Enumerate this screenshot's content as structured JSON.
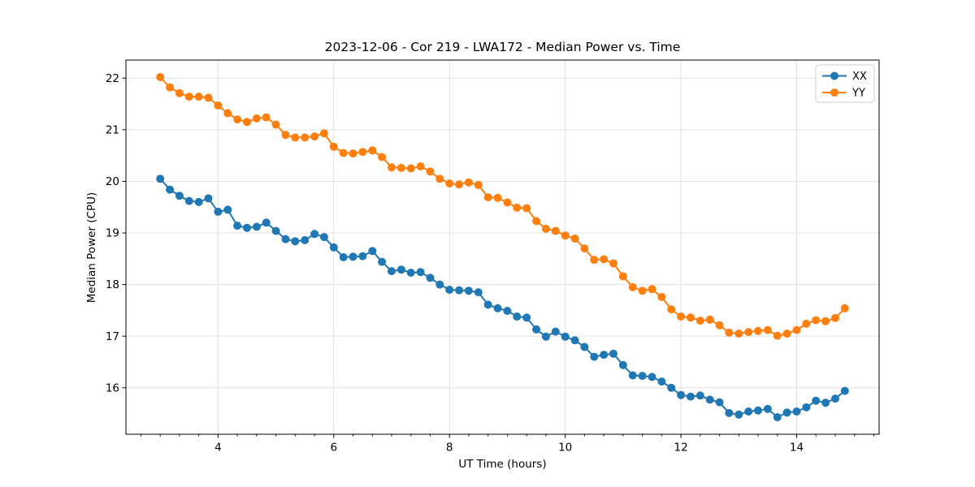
{
  "figure": {
    "background": "#ffffff"
  },
  "chart_data": {
    "type": "line",
    "title": "2023-12-06 - Cor 219 - LWA172 - Median Power vs. Time",
    "xlabel": "UT Time (hours)",
    "ylabel": "Median Power (CPU)",
    "xlim": [
      2.408,
      15.425
    ],
    "ylim": [
      15.1,
      22.35
    ],
    "x_major_ticks": [
      4,
      6,
      8,
      10,
      12,
      14
    ],
    "x_minor_step": 0.33333,
    "y_major_ticks": [
      16,
      17,
      18,
      19,
      20,
      21,
      22
    ],
    "grid": "major",
    "grid_color": "#e0e0e0",
    "legend_position": "upper right",
    "legend_labels": [
      "XX",
      "YY"
    ],
    "x": [
      3.0,
      3.167,
      3.333,
      3.5,
      3.667,
      3.833,
      4.0,
      4.167,
      4.333,
      4.5,
      4.667,
      4.833,
      5.0,
      5.167,
      5.333,
      5.5,
      5.667,
      5.833,
      6.0,
      6.167,
      6.333,
      6.5,
      6.667,
      6.833,
      7.0,
      7.167,
      7.333,
      7.5,
      7.667,
      7.833,
      8.0,
      8.167,
      8.333,
      8.5,
      8.667,
      8.833,
      9.0,
      9.167,
      9.333,
      9.5,
      9.667,
      9.833,
      10.0,
      10.167,
      10.333,
      10.5,
      10.667,
      10.833,
      11.0,
      11.167,
      11.333,
      11.5,
      11.667,
      11.833,
      12.0,
      12.167,
      12.333,
      12.5,
      12.667,
      12.833,
      13.0,
      13.167,
      13.333,
      13.5,
      13.667,
      13.833,
      14.0,
      14.167,
      14.333,
      14.5,
      14.667,
      14.833
    ],
    "series": [
      {
        "name": "XX",
        "color": "#1f77b4",
        "values": [
          20.05,
          19.84,
          19.72,
          19.62,
          19.6,
          19.67,
          19.41,
          19.45,
          19.14,
          19.1,
          19.12,
          19.2,
          19.04,
          18.88,
          18.84,
          18.86,
          18.98,
          18.92,
          18.72,
          18.53,
          18.54,
          18.55,
          18.65,
          18.44,
          18.26,
          18.29,
          18.23,
          18.24,
          18.13,
          18.0,
          17.9,
          17.89,
          17.88,
          17.85,
          17.61,
          17.54,
          17.49,
          17.38,
          17.36,
          17.13,
          16.99,
          17.09,
          16.99,
          16.92,
          16.79,
          16.6,
          16.64,
          16.66,
          16.44,
          16.24,
          16.23,
          16.21,
          16.12,
          16.0,
          15.86,
          15.83,
          15.85,
          15.77,
          15.72,
          15.51,
          15.48,
          15.54,
          15.56,
          15.59,
          15.43,
          15.52,
          15.54,
          15.62,
          15.75,
          15.71,
          15.79,
          15.94
        ]
      },
      {
        "name": "YY",
        "color": "#ff7f0e",
        "values": [
          22.02,
          21.82,
          21.71,
          21.64,
          21.64,
          21.62,
          21.47,
          21.32,
          21.2,
          21.15,
          21.22,
          21.24,
          21.1,
          20.9,
          20.85,
          20.85,
          20.87,
          20.93,
          20.67,
          20.55,
          20.54,
          20.57,
          20.6,
          20.47,
          20.27,
          20.26,
          20.25,
          20.29,
          20.19,
          20.05,
          19.96,
          19.94,
          19.98,
          19.93,
          19.69,
          19.68,
          19.59,
          19.49,
          19.48,
          19.23,
          19.08,
          19.04,
          18.95,
          18.89,
          18.7,
          18.48,
          18.49,
          18.41,
          18.16,
          17.95,
          17.88,
          17.91,
          17.76,
          17.52,
          17.38,
          17.36,
          17.3,
          17.32,
          17.21,
          17.07,
          17.05,
          17.08,
          17.1,
          17.12,
          17.01,
          17.05,
          17.12,
          17.24,
          17.31,
          17.29,
          17.35,
          17.54
        ]
      }
    ]
  }
}
